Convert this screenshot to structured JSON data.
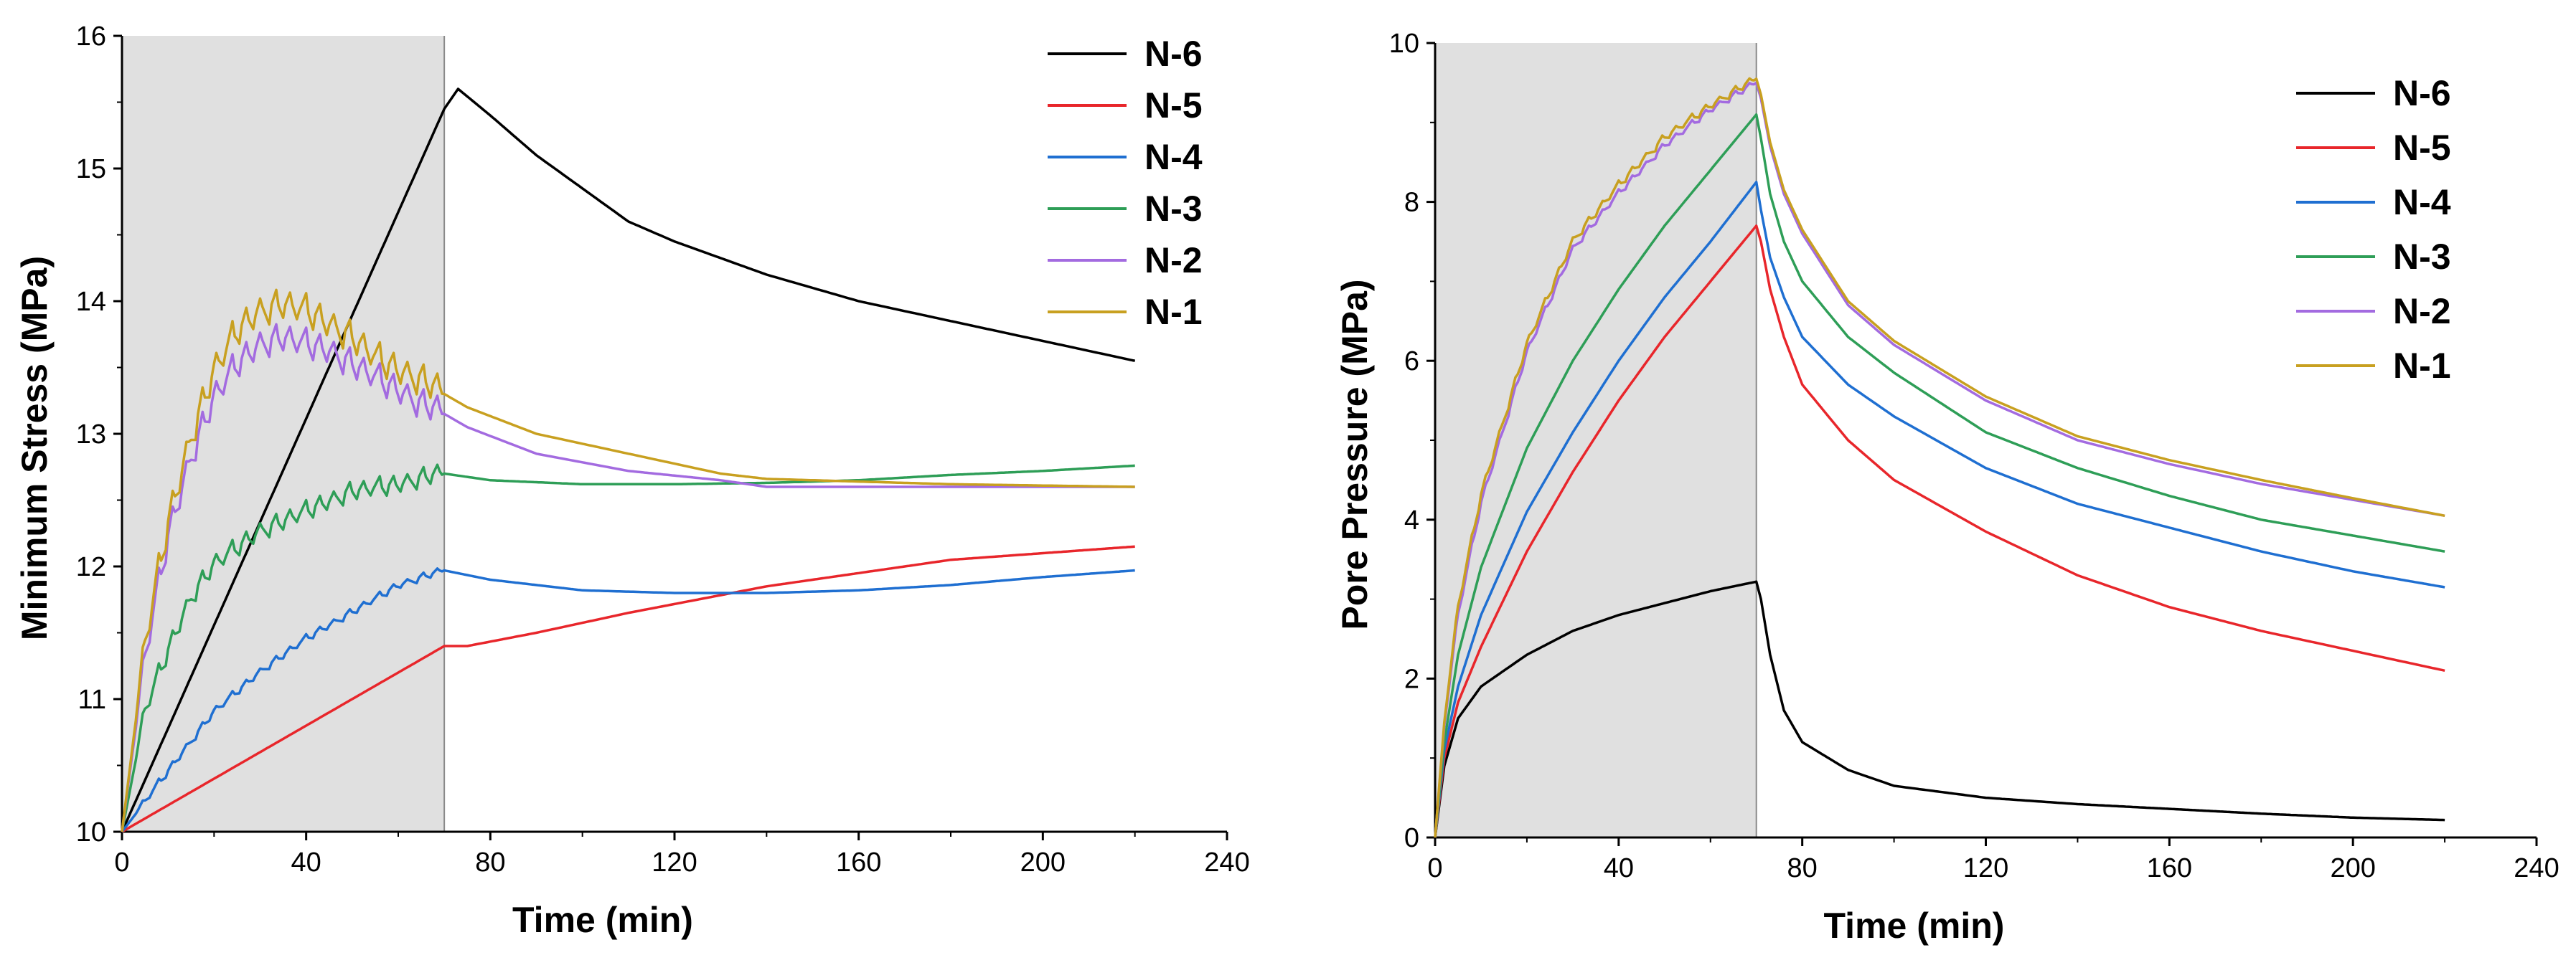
{
  "chart_data": [
    {
      "type": "line",
      "xlabel": "Time (min)",
      "ylabel": "Minimum Stress (MPa)",
      "xlim": [
        0,
        240
      ],
      "ylim": [
        10,
        16
      ],
      "xticks": [
        "0",
        "40",
        "80",
        "120",
        "160",
        "200",
        "240"
      ],
      "yticks": [
        "10",
        "11",
        "12",
        "13",
        "14",
        "15",
        "16"
      ],
      "shaded_region": [
        0,
        70
      ],
      "legend_position": "top-right",
      "series": [
        {
          "name": "N-6",
          "color": "#000000",
          "x": [
            0,
            70,
            73,
            80,
            90,
            100,
            110,
            120,
            140,
            160,
            180,
            200,
            220
          ],
          "y": [
            10,
            15.45,
            15.6,
            15.4,
            15.1,
            14.85,
            14.6,
            14.45,
            14.2,
            14.0,
            13.85,
            13.7,
            13.55
          ],
          "zigzag": 0
        },
        {
          "name": "N-5",
          "color": "#e8262b",
          "x": [
            0,
            70,
            75,
            90,
            110,
            140,
            160,
            180,
            200,
            220
          ],
          "y": [
            10,
            11.4,
            11.4,
            11.5,
            11.65,
            11.85,
            11.95,
            12.05,
            12.1,
            12.15
          ],
          "zigzag": 0
        },
        {
          "name": "N-4",
          "color": "#1f6fd1",
          "x": [
            0,
            10,
            20,
            30,
            40,
            50,
            60,
            70,
            80,
            100,
            120,
            140,
            160,
            180,
            200,
            220
          ],
          "y": [
            10,
            10.45,
            10.9,
            11.2,
            11.45,
            11.65,
            11.85,
            11.97,
            11.9,
            11.82,
            11.8,
            11.8,
            11.82,
            11.86,
            11.92,
            11.97
          ],
          "zigzag": 0.04
        },
        {
          "name": "N-3",
          "color": "#2e9e57",
          "x": [
            0,
            5,
            10,
            15,
            20,
            30,
            40,
            50,
            60,
            70,
            80,
            100,
            120,
            140,
            160,
            180,
            200,
            220
          ],
          "y": [
            10,
            10.9,
            11.35,
            11.75,
            12.0,
            12.25,
            12.4,
            12.55,
            12.6,
            12.7,
            12.65,
            12.62,
            12.62,
            12.63,
            12.65,
            12.69,
            12.72,
            12.76
          ],
          "zigzag": 0.1
        },
        {
          "name": "N-2",
          "color": "#a36be0",
          "x": [
            0,
            5,
            10,
            15,
            20,
            25,
            30,
            35,
            40,
            45,
            50,
            55,
            60,
            65,
            70,
            75,
            90,
            110,
            130,
            140,
            160,
            180,
            200,
            220
          ],
          "y": [
            10,
            11.3,
            12.2,
            12.8,
            13.25,
            13.5,
            13.65,
            13.7,
            13.65,
            13.6,
            13.5,
            13.4,
            13.3,
            13.2,
            13.15,
            13.05,
            12.85,
            12.72,
            12.65,
            12.6,
            12.6,
            12.6,
            12.6,
            12.6
          ],
          "zigzag": 0.15
        },
        {
          "name": "N-1",
          "color": "#c8a020",
          "x": [
            0,
            5,
            10,
            15,
            20,
            25,
            30,
            35,
            40,
            45,
            50,
            55,
            60,
            65,
            70,
            75,
            90,
            110,
            130,
            140,
            160,
            180,
            200,
            220
          ],
          "y": [
            10,
            11.4,
            12.3,
            12.95,
            13.45,
            13.75,
            13.9,
            13.95,
            13.9,
            13.8,
            13.7,
            13.55,
            13.45,
            13.38,
            13.3,
            13.2,
            13.0,
            12.85,
            12.7,
            12.66,
            12.64,
            12.62,
            12.61,
            12.6
          ],
          "zigzag": 0.16
        }
      ]
    },
    {
      "type": "line",
      "xlabel": "Time (min)",
      "ylabel": "Pore Pressure (MPa)",
      "xlim": [
        0,
        240
      ],
      "ylim": [
        0,
        10
      ],
      "xticks": [
        "0",
        "40",
        "80",
        "120",
        "160",
        "200",
        "240"
      ],
      "yticks": [
        "0",
        "2",
        "4",
        "6",
        "8",
        "10"
      ],
      "shaded_region": [
        0,
        70
      ],
      "legend_position": "top-right",
      "series": [
        {
          "name": "N-6",
          "color": "#000000",
          "x": [
            0,
            2,
            5,
            10,
            20,
            30,
            40,
            50,
            60,
            70,
            71,
            73,
            76,
            80,
            90,
            100,
            120,
            140,
            160,
            180,
            200,
            220
          ],
          "y": [
            0,
            0.9,
            1.5,
            1.9,
            2.3,
            2.6,
            2.8,
            2.95,
            3.1,
            3.22,
            3.0,
            2.3,
            1.6,
            1.2,
            0.85,
            0.65,
            0.5,
            0.42,
            0.36,
            0.3,
            0.25,
            0.22
          ],
          "zigzag": 0
        },
        {
          "name": "N-5",
          "color": "#e8262b",
          "x": [
            0,
            2,
            5,
            10,
            20,
            30,
            40,
            50,
            60,
            70,
            71,
            73,
            76,
            80,
            90,
            100,
            120,
            140,
            160,
            180,
            200,
            220
          ],
          "y": [
            0,
            1.0,
            1.7,
            2.4,
            3.6,
            4.6,
            5.5,
            6.3,
            7.0,
            7.7,
            7.5,
            6.9,
            6.3,
            5.7,
            5.0,
            4.5,
            3.85,
            3.3,
            2.9,
            2.6,
            2.35,
            2.1
          ],
          "zigzag": 0
        },
        {
          "name": "N-4",
          "color": "#1f6fd1",
          "x": [
            0,
            2,
            5,
            10,
            20,
            30,
            40,
            50,
            60,
            70,
            71,
            73,
            76,
            80,
            90,
            100,
            120,
            140,
            160,
            180,
            200,
            220
          ],
          "y": [
            0,
            1.1,
            1.9,
            2.8,
            4.1,
            5.1,
            6.0,
            6.8,
            7.5,
            8.25,
            7.9,
            7.3,
            6.8,
            6.3,
            5.7,
            5.3,
            4.65,
            4.2,
            3.9,
            3.6,
            3.35,
            3.15
          ],
          "zigzag": 0
        },
        {
          "name": "N-3",
          "color": "#2e9e57",
          "x": [
            0,
            2,
            5,
            10,
            20,
            30,
            40,
            50,
            60,
            70,
            71,
            73,
            76,
            80,
            90,
            100,
            120,
            140,
            160,
            180,
            200,
            220
          ],
          "y": [
            0,
            1.2,
            2.3,
            3.4,
            4.9,
            6.0,
            6.9,
            7.7,
            8.4,
            9.1,
            8.8,
            8.1,
            7.5,
            7.0,
            6.3,
            5.85,
            5.1,
            4.65,
            4.3,
            4.0,
            3.8,
            3.6
          ],
          "zigzag": 0
        },
        {
          "name": "N-2",
          "color": "#a36be0",
          "x": [
            0,
            2,
            5,
            10,
            20,
            30,
            40,
            50,
            60,
            70,
            71,
            73,
            76,
            80,
            90,
            100,
            120,
            140,
            160,
            180,
            200,
            220
          ],
          "y": [
            0,
            1.4,
            2.8,
            4.2,
            6.1,
            7.4,
            8.1,
            8.7,
            9.15,
            9.5,
            9.3,
            8.7,
            8.1,
            7.6,
            6.7,
            6.2,
            5.5,
            5.0,
            4.7,
            4.45,
            4.25,
            4.05
          ],
          "zigzag": 0.06
        },
        {
          "name": "N-1",
          "color": "#c8a020",
          "x": [
            0,
            2,
            5,
            10,
            20,
            30,
            40,
            50,
            60,
            70,
            71,
            73,
            76,
            80,
            90,
            100,
            120,
            140,
            160,
            180,
            200,
            220
          ],
          "y": [
            0,
            1.45,
            2.9,
            4.3,
            6.2,
            7.5,
            8.2,
            8.8,
            9.2,
            9.55,
            9.35,
            8.75,
            8.15,
            7.65,
            6.75,
            6.25,
            5.55,
            5.05,
            4.75,
            4.5,
            4.27,
            4.05
          ],
          "zigzag": 0.07
        }
      ]
    }
  ]
}
